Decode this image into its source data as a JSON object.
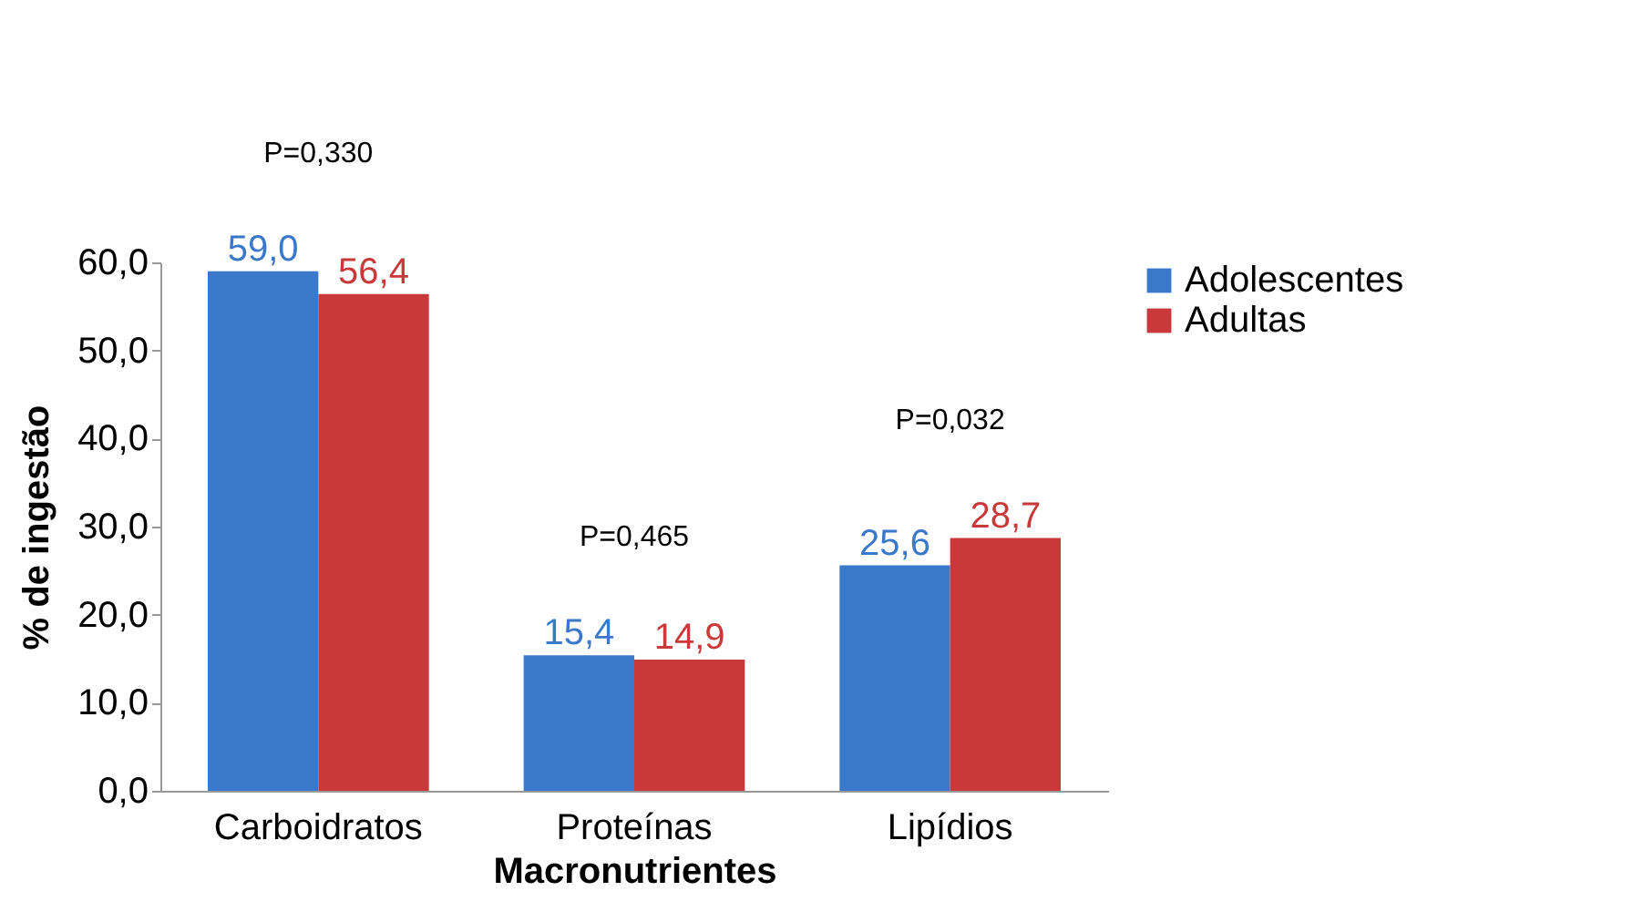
{
  "chart_data": {
    "type": "bar",
    "xlabel": "Macronutrientes",
    "ylabel": "% de ingestão",
    "categories": [
      "Carboidratos",
      "Proteínas",
      "Lipídios"
    ],
    "series": [
      {
        "name": "Adolescentes",
        "color": "#3a78c9",
        "values": [
          59.0,
          15.4,
          25.6
        ],
        "value_labels": [
          "59,0",
          "15,4",
          "25,6"
        ]
      },
      {
        "name": "Adultas",
        "color": "#c9393a",
        "values": [
          56.4,
          14.9,
          28.7
        ],
        "value_labels": [
          "56,4",
          "14,9",
          "28,7"
        ]
      }
    ],
    "ylim": [
      0,
      60
    ],
    "yticks": [
      {
        "value": 0,
        "label": "0,0"
      },
      {
        "value": 10,
        "label": "10,0"
      },
      {
        "value": 20,
        "label": "20,0"
      },
      {
        "value": 30,
        "label": "30,0"
      },
      {
        "value": 40,
        "label": "40,0"
      },
      {
        "value": 50,
        "label": "50,0"
      },
      {
        "value": 60,
        "label": "60,0"
      }
    ],
    "annotations": [
      "P=0,330",
      "P=0,465",
      "P=0,032"
    ],
    "legend": "right",
    "grid": false
  }
}
